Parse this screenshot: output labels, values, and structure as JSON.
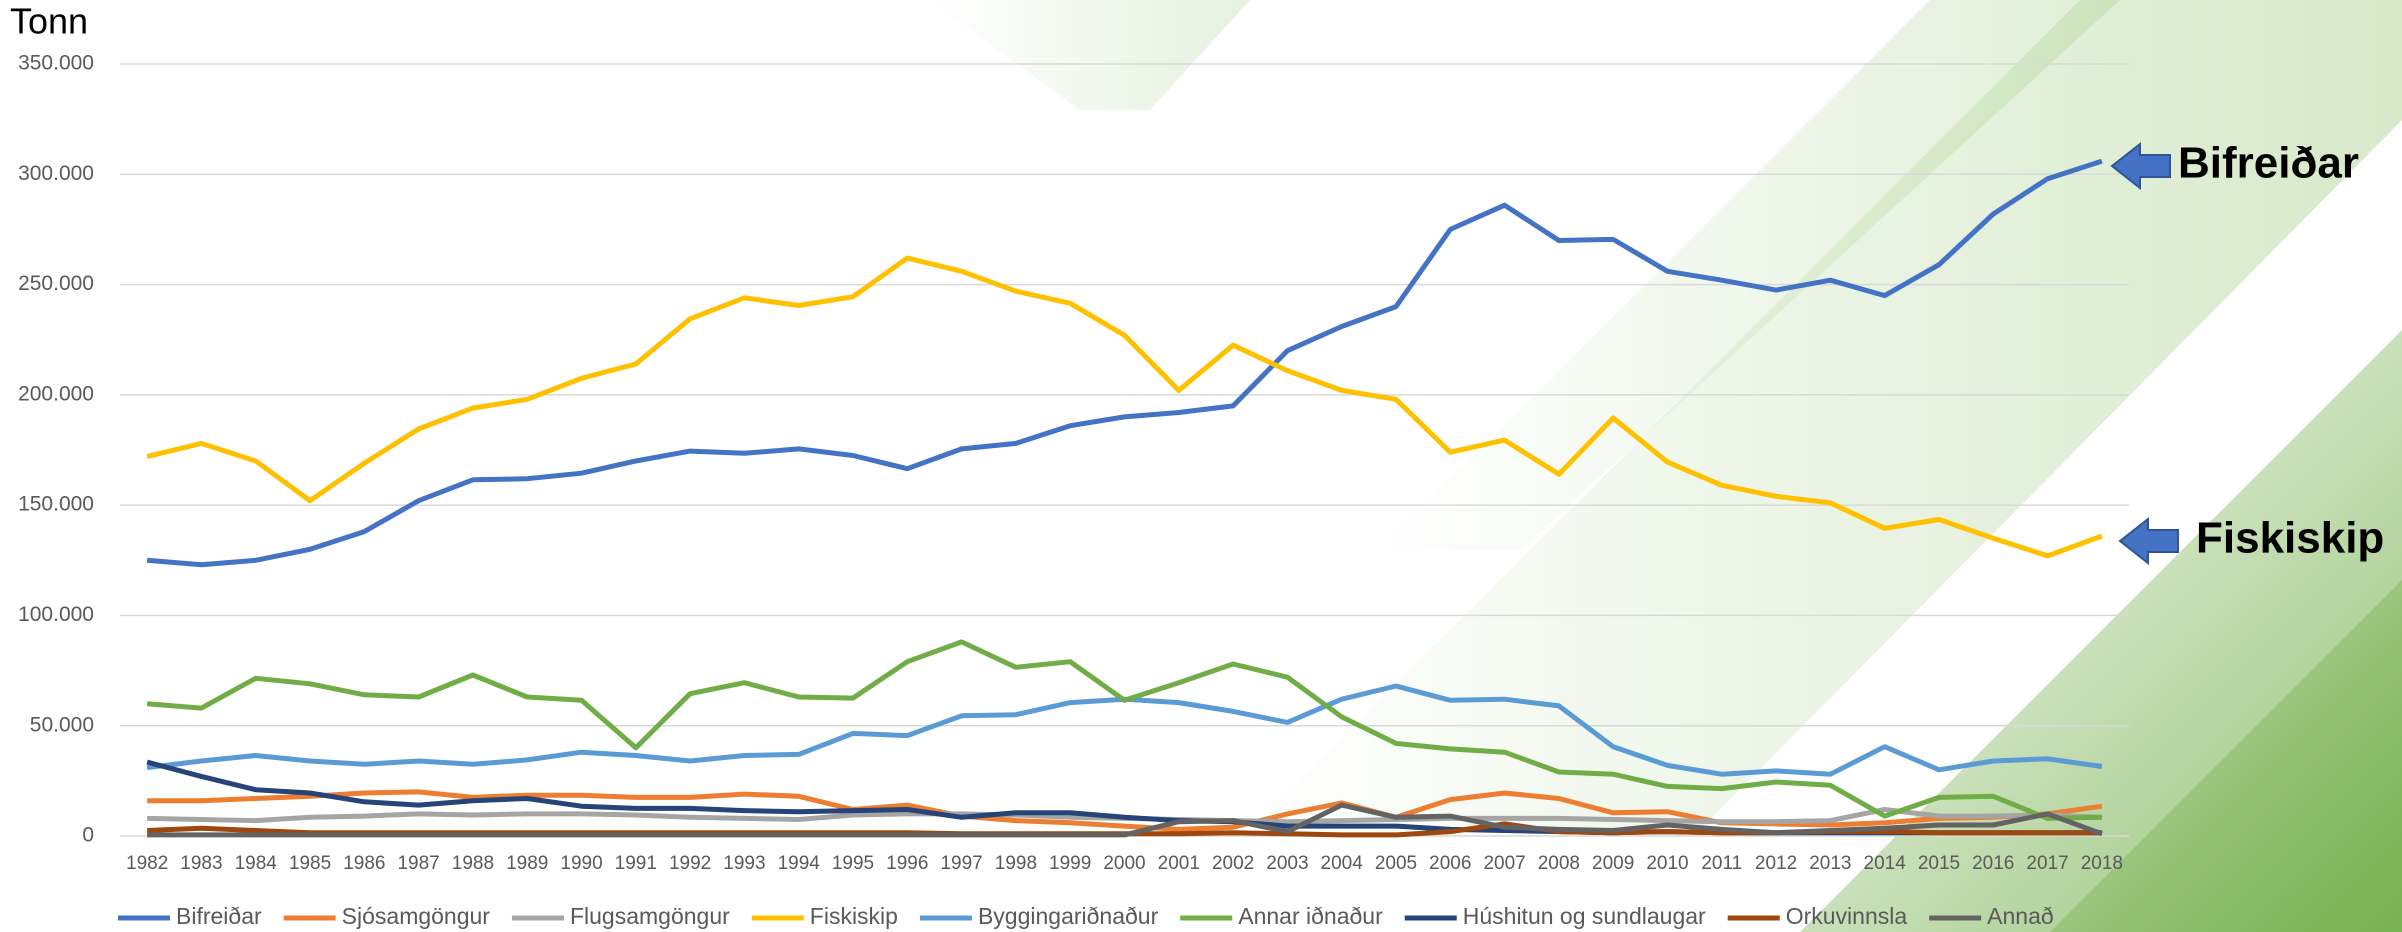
{
  "chart_data": {
    "type": "line",
    "y_axis_title": "Tonn",
    "categories": [
      "1982",
      "1983",
      "1984",
      "1985",
      "1986",
      "1987",
      "1988",
      "1989",
      "1990",
      "1991",
      "1992",
      "1993",
      "1994",
      "1995",
      "1996",
      "1997",
      "1998",
      "1999",
      "2000",
      "2001",
      "2002",
      "2003",
      "2004",
      "2005",
      "2006",
      "2007",
      "2008",
      "2009",
      "2010",
      "2011",
      "2012",
      "2013",
      "2014",
      "2015",
      "2016",
      "2017",
      "2018"
    ],
    "ylim": [
      0,
      350000
    ],
    "yticks": [
      0,
      {
        "value": 50000,
        "label": "50.000"
      },
      {
        "value": 100000,
        "label": "100.000"
      },
      {
        "value": 150000,
        "label": "150.000"
      },
      {
        "value": 200000,
        "label": "200.000"
      },
      {
        "value": 250000,
        "label": "250.000"
      },
      {
        "value": 300000,
        "label": "300.000"
      },
      {
        "value": 350000,
        "label": "350.000"
      }
    ],
    "grid": true,
    "legend": "bottom",
    "series": [
      {
        "name": "Bifreiðar",
        "color": "#4472c4",
        "values": [
          125000,
          123000,
          125000,
          130000,
          138000,
          152000,
          161500,
          162000,
          164500,
          170000,
          174500,
          173500,
          175500,
          172500,
          166500,
          175500,
          178000,
          186000,
          190000,
          192000,
          195000,
          220000,
          231000,
          240000,
          275000,
          286000,
          270000,
          270500,
          256000,
          252000,
          247500,
          252000,
          245000,
          259000,
          282000,
          298000,
          306000
        ]
      },
      {
        "name": "Sjósamgöngur",
        "color": "#ed7d31",
        "values": [
          16000,
          16000,
          17000,
          18000,
          19500,
          20000,
          17500,
          18500,
          18500,
          17500,
          17500,
          19000,
          18000,
          12000,
          14000,
          9000,
          7000,
          6000,
          4500,
          3000,
          4000,
          10000,
          15000,
          8500,
          16500,
          19500,
          17000,
          10500,
          11000,
          6000,
          5500,
          5000,
          6000,
          8000,
          8500,
          10000,
          13500
        ]
      },
      {
        "name": "Flugsamgöngur",
        "color": "#a5a5a5",
        "values": [
          8000,
          7500,
          7000,
          8500,
          9000,
          10000,
          9500,
          10000,
          10000,
          9500,
          8500,
          8000,
          7500,
          9500,
          10000,
          10000,
          9500,
          8500,
          8000,
          7500,
          7000,
          6500,
          7000,
          7500,
          8000,
          8000,
          8000,
          7500,
          7000,
          6500,
          6500,
          7000,
          12000,
          9000,
          9000,
          9500,
          8500
        ]
      },
      {
        "name": "Fiskiskip",
        "color": "#ffc000",
        "values": [
          172000,
          178000,
          170000,
          152000,
          169000,
          184500,
          194000,
          198000,
          207500,
          214000,
          234500,
          244000,
          240500,
          244500,
          262000,
          256000,
          247000,
          241500,
          227000,
          202000,
          222500,
          211000,
          202000,
          198000,
          174000,
          179500,
          164000,
          189500,
          169500,
          159000,
          154000,
          151000,
          139500,
          143500,
          135000,
          127000,
          136000
        ]
      },
      {
        "name": "Byggingariðnaður",
        "color": "#5b9bd5",
        "values": [
          31000,
          34000,
          36500,
          34000,
          32500,
          34000,
          32500,
          34500,
          38000,
          36500,
          34000,
          36500,
          37000,
          46500,
          45500,
          54500,
          55000,
          60500,
          62000,
          60500,
          56500,
          51500,
          62000,
          68000,
          61500,
          62000,
          59000,
          40500,
          32000,
          28000,
          29500,
          28000,
          40500,
          30000,
          34000,
          35000,
          31500
        ]
      },
      {
        "name": "Annar iðnaður",
        "color": "#70ad47",
        "values": [
          60000,
          58000,
          71500,
          69000,
          64000,
          63000,
          73000,
          63000,
          61500,
          40000,
          64500,
          69500,
          63000,
          62500,
          79000,
          88000,
          76500,
          79000,
          61500,
          69500,
          78000,
          72000,
          54000,
          42000,
          39500,
          38000,
          29000,
          28000,
          22500,
          21500,
          24500,
          23000,
          9000,
          17500,
          18000,
          8000,
          8500
        ]
      },
      {
        "name": "Húshitun og sundlaugar",
        "color": "#264478",
        "values": [
          33500,
          27000,
          21000,
          19500,
          15500,
          14000,
          16000,
          17000,
          13500,
          12500,
          12500,
          11500,
          11000,
          11500,
          12000,
          8500,
          10500,
          10500,
          8500,
          7000,
          6500,
          4500,
          4500,
          4500,
          3000,
          2500,
          2000,
          1500,
          2000,
          1500,
          1500,
          1500,
          1500,
          1500,
          1500,
          1500,
          1500
        ]
      },
      {
        "name": "Orkuvinnsla",
        "color": "#9e480e",
        "values": [
          2500,
          3500,
          2500,
          1500,
          1500,
          1500,
          1500,
          1500,
          1500,
          1500,
          1500,
          1500,
          1500,
          1500,
          1500,
          1000,
          1000,
          1000,
          1000,
          1000,
          1500,
          1000,
          500,
          500,
          2000,
          5500,
          2000,
          1500,
          2000,
          1500,
          1500,
          2000,
          2000,
          1500,
          1500,
          1500,
          1500
        ]
      },
      {
        "name": "Annað",
        "color": "#636363",
        "values": [
          500,
          500,
          500,
          500,
          500,
          500,
          500,
          500,
          500,
          500,
          500,
          500,
          500,
          500,
          500,
          500,
          500,
          500,
          500,
          6500,
          7000,
          2000,
          14000,
          8500,
          9000,
          4000,
          3000,
          2500,
          5000,
          3000,
          1500,
          2500,
          3500,
          5000,
          5000,
          10000,
          1000
        ]
      }
    ],
    "annotations": [
      "Bifreiðar",
      "Fiskiskip"
    ]
  }
}
